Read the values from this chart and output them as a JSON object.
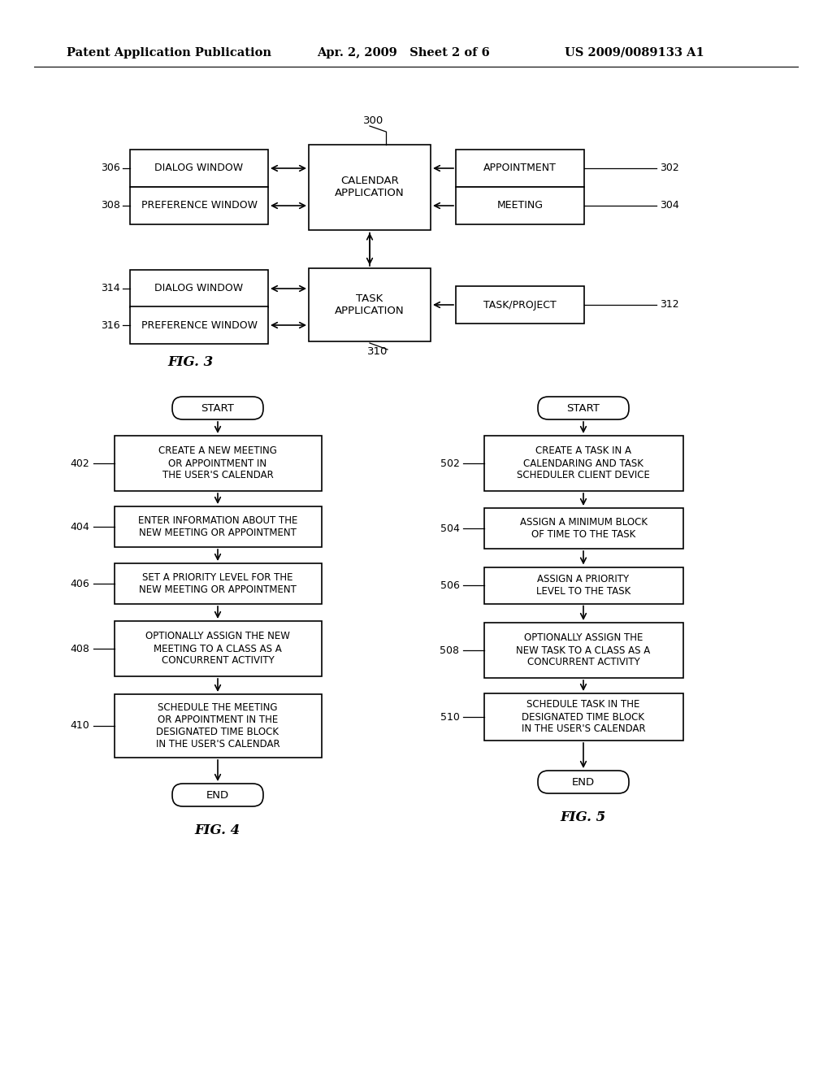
{
  "bg_color": "#ffffff",
  "header_left": "Patent Application Publication",
  "header_mid": "Apr. 2, 2009   Sheet 2 of 6",
  "header_right": "US 2009/0089133 A1",
  "fig3_label": "FIG. 3",
  "fig4_label": "FIG. 4",
  "fig5_label": "FIG. 5",
  "fig4_steps": [
    {
      "num": "",
      "text": "START",
      "type": "oval"
    },
    {
      "num": "402",
      "text": "CREATE A NEW MEETING\nOR APPOINTMENT IN\nTHE USER'S CALENDAR",
      "type": "rect"
    },
    {
      "num": "404",
      "text": "ENTER INFORMATION ABOUT THE\nNEW MEETING OR APPOINTMENT",
      "type": "rect"
    },
    {
      "num": "406",
      "text": "SET A PRIORITY LEVEL FOR THE\nNEW MEETING OR APPOINTMENT",
      "type": "rect"
    },
    {
      "num": "408",
      "text": "OPTIONALLY ASSIGN THE NEW\nMEETING TO A CLASS AS A\nCONCURRENT ACTIVITY",
      "type": "rect"
    },
    {
      "num": "410",
      "text": "SCHEDULE THE MEETING\nOR APPOINTMENT IN THE\nDESIGNATED TIME BLOCK\nIN THE USER'S CALENDAR",
      "type": "rect"
    },
    {
      "num": "",
      "text": "END",
      "type": "oval"
    }
  ],
  "fig5_steps": [
    {
      "num": "",
      "text": "START",
      "type": "oval"
    },
    {
      "num": "502",
      "text": "CREATE A TASK IN A\nCALENDARING AND TASK\nSCHEDULER CLIENT DEVICE",
      "type": "rect"
    },
    {
      "num": "504",
      "text": "ASSIGN A MINIMUM BLOCK\nOF TIME TO THE TASK",
      "type": "rect"
    },
    {
      "num": "506",
      "text": "ASSIGN A PRIORITY\nLEVEL TO THE TASK",
      "type": "rect"
    },
    {
      "num": "508",
      "text": "OPTIONALLY ASSIGN THE\nNEW TASK TO A CLASS AS A\nCONCURRENT ACTIVITY",
      "type": "rect"
    },
    {
      "num": "510",
      "text": "SCHEDULE TASK IN THE\nDESIGNATED TIME BLOCK\nIN THE USER'S CALENDAR",
      "type": "rect"
    },
    {
      "num": "",
      "text": "END",
      "type": "oval"
    }
  ]
}
